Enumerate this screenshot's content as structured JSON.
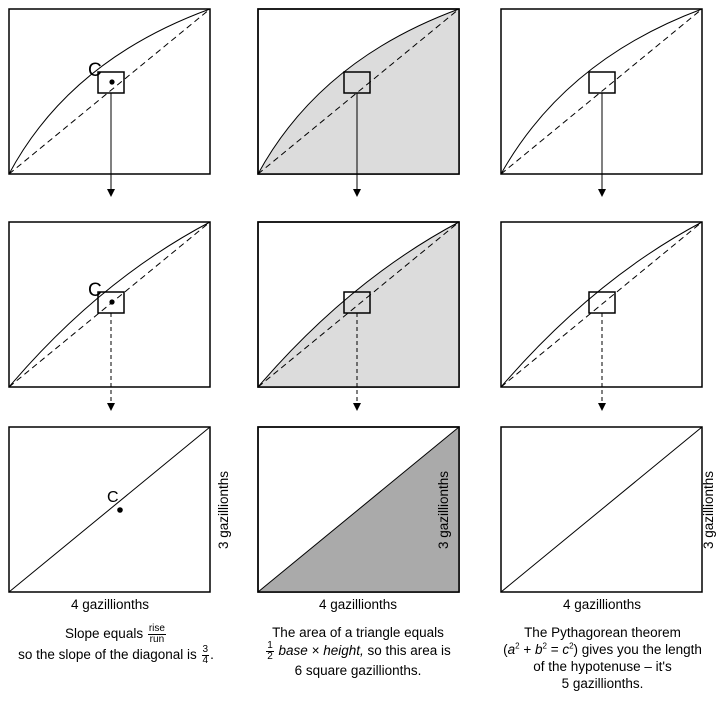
{
  "labels": {
    "point": "C",
    "width_label": "4 gazillionths",
    "height_label": "3 gazillionths"
  },
  "captions": {
    "slope": {
      "prefix": "Slope equals",
      "frac_num": "rise",
      "frac_den": "run",
      "line2_prefix": "so the slope of the diagonal is",
      "value_num": "3",
      "value_den": "4",
      "line2_suffix": "."
    },
    "area": {
      "line1": "The area of a triangle equals",
      "half_num": "1",
      "half_den": "2",
      "formula": "base × height,",
      "line2_suffix": "so this area is",
      "line3": "6 square gazillionths."
    },
    "pythagoras": {
      "line1": "The Pythagorean theorem",
      "eq_a": "a",
      "eq_b": "b",
      "eq_c": "c",
      "exp": "2",
      "line2_suffix": "gives you the length",
      "line3": "of the hypotenuse – it's",
      "line4": "5 gazillionths."
    }
  },
  "colors": {
    "light_fill": "#dcdcdc",
    "dark_fill": "#aaaaaa",
    "stroke": "#000000"
  }
}
